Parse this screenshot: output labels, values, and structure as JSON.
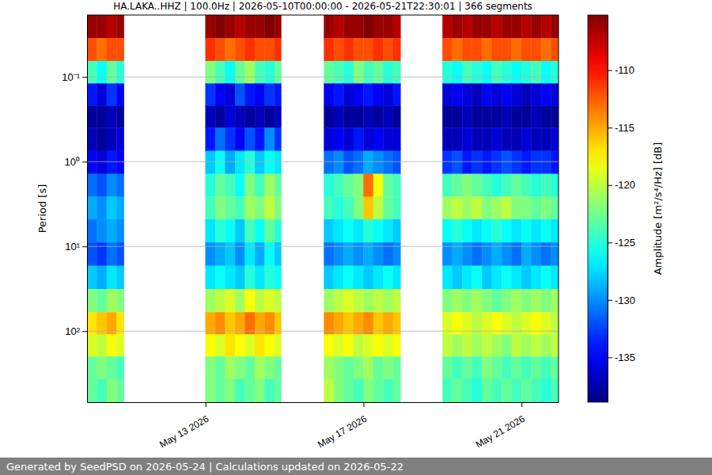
{
  "chart_data": {
    "type": "heatmap",
    "title": "HA.LAKA..HHZ | 100.0Hz | 2026-05-10T00:00:00 - 2026-05-21T22:30:01 | 366 segments",
    "y_label": "Period [s]",
    "colorbar_label": "Amplitude [m²/s⁴/Hz] [dB]",
    "footer": "Generated by SeedPSD on 2026-05-24 | Calculations updated on 2026-05-22",
    "log": "y",
    "grid": true,
    "xlim": [
      "2026-05-10T00:00:00",
      "2026-05-21T22:30:01"
    ],
    "xticks": [
      {
        "value": "2026-05-13T00:00:00",
        "label": "May 13 2026"
      },
      {
        "value": "2026-05-17T00:00:00",
        "label": "May 17 2026"
      },
      {
        "value": "2026-05-21T00:00:00",
        "label": "May 21 2026"
      }
    ],
    "ylim": [
      0.0186,
      690
    ],
    "yticks": [
      {
        "value": 0.1,
        "label": "10⁻¹"
      },
      {
        "value": 1,
        "label": "10⁰"
      },
      {
        "value": 10,
        "label": "10¹"
      },
      {
        "value": 100,
        "label": "10²"
      }
    ],
    "clim": [
      -138.9,
      -105.2
    ],
    "cticks": [
      -110,
      -115,
      -120,
      -125,
      -130,
      -135
    ],
    "x": [
      "2026-05-10T00:00:00",
      "2026-05-10T06:00:00",
      "2026-05-10T12:00:00",
      "2026-05-10T18:00:00",
      "2026-05-13T00:00:00",
      "2026-05-13T06:00:00",
      "2026-05-13T12:00:00",
      "2026-05-13T18:00:00",
      "2026-05-14T00:00:00",
      "2026-05-14T06:00:00",
      "2026-05-14T12:00:00",
      "2026-05-14T18:00:00",
      "2026-05-16T00:00:00",
      "2026-05-16T06:00:00",
      "2026-05-16T12:00:00",
      "2026-05-16T18:00:00",
      "2026-05-17T00:00:00",
      "2026-05-17T06:00:00",
      "2026-05-17T12:00:00",
      "2026-05-17T18:00:00",
      "2026-05-19T00:00:00",
      "2026-05-19T06:00:00",
      "2026-05-19T12:00:00",
      "2026-05-19T18:00:00",
      "2026-05-20T00:00:00",
      "2026-05-20T06:00:00",
      "2026-05-20T12:00:00",
      "2026-05-20T18:00:00",
      "2026-05-21T00:00:00",
      "2026-05-21T06:00:00",
      "2026-05-21T12:00:00",
      "2026-05-21T18:00:00"
    ],
    "x_end": [
      "2026-05-10T06:00:00",
      "2026-05-10T12:00:00",
      "2026-05-10T18:00:00",
      "2026-05-10T22:30:00",
      "2026-05-13T06:00:00",
      "2026-05-13T12:00:00",
      "2026-05-13T18:00:00",
      "2026-05-14T00:00:00",
      "2026-05-14T06:00:00",
      "2026-05-14T12:00:00",
      "2026-05-14T18:00:00",
      "2026-05-14T22:00:00",
      "2026-05-16T06:00:00",
      "2026-05-16T12:00:00",
      "2026-05-16T18:00:00",
      "2026-05-17T00:00:00",
      "2026-05-17T06:00:00",
      "2026-05-17T12:00:00",
      "2026-05-17T18:00:00",
      "2026-05-17T22:30:00",
      "2026-05-19T06:00:00",
      "2026-05-19T12:00:00",
      "2026-05-19T18:00:00",
      "2026-05-20T00:00:00",
      "2026-05-20T06:00:00",
      "2026-05-20T12:00:00",
      "2026-05-20T18:00:00",
      "2026-05-21T00:00:00",
      "2026-05-21T06:00:00",
      "2026-05-21T12:00:00",
      "2026-05-21T18:00:00",
      "2026-05-21T22:30:01"
    ],
    "y_bins": [
      0.0186,
      0.035,
      0.065,
      0.12,
      0.22,
      0.4,
      0.75,
      1.4,
      2.6,
      4.8,
      9,
      17,
      32,
      60,
      110,
      200,
      370,
      690
    ],
    "z": [
      [
        -106,
        -106,
        -107,
        -106,
        -106,
        -105,
        -106,
        -107,
        -106,
        -106,
        -105,
        -106,
        -106,
        -107,
        -106,
        -106,
        -105,
        -106,
        -106,
        -107,
        -107,
        -106,
        -107,
        -106,
        -106,
        -107,
        -106,
        -106,
        -107,
        -106,
        -107,
        -106
      ],
      [
        -112,
        -113,
        -112,
        -112,
        -111,
        -112,
        -113,
        -112,
        -111,
        -112,
        -112,
        -111,
        -111,
        -112,
        -111,
        -112,
        -112,
        -111,
        -112,
        -111,
        -112,
        -113,
        -112,
        -112,
        -113,
        -112,
        -112,
        -113,
        -112,
        -112,
        -113,
        -112
      ],
      [
        -124,
        -126,
        -123,
        -125,
        -122,
        -124,
        -126,
        -123,
        -121,
        -124,
        -125,
        -123,
        -123,
        -124,
        -125,
        -122,
        -124,
        -123,
        -125,
        -124,
        -125,
        -126,
        -124,
        -125,
        -126,
        -124,
        -125,
        -126,
        -125,
        -124,
        -126,
        -125
      ],
      [
        -134,
        -136,
        -133,
        -135,
        -133,
        -135,
        -136,
        -132,
        -134,
        -135,
        -133,
        -134,
        -135,
        -134,
        -136,
        -135,
        -134,
        -135,
        -136,
        -134,
        -136,
        -135,
        -136,
        -137,
        -135,
        -136,
        -135,
        -136,
        -137,
        -136,
        -135,
        -136
      ],
      [
        -138,
        -138,
        -137,
        -138,
        -137,
        -138,
        -136,
        -137,
        -138,
        -137,
        -138,
        -137,
        -138,
        -137,
        -138,
        -138,
        -137,
        -138,
        -137,
        -138,
        -138,
        -138,
        -137,
        -138,
        -138,
        -138,
        -137,
        -138,
        -138,
        -137,
        -138,
        -138
      ],
      [
        -137,
        -138,
        -137,
        -136,
        -134,
        -131,
        -133,
        -135,
        -132,
        -134,
        -130,
        -133,
        -136,
        -135,
        -136,
        -134,
        -136,
        -135,
        -136,
        -136,
        -137,
        -137,
        -136,
        -137,
        -137,
        -136,
        -137,
        -137,
        -136,
        -137,
        -137,
        -136
      ],
      [
        -135,
        -136,
        -134,
        -135,
        -128,
        -126,
        -129,
        -127,
        -125,
        -128,
        -126,
        -127,
        -131,
        -130,
        -132,
        -131,
        -129,
        -130,
        -131,
        -132,
        -133,
        -132,
        -134,
        -133,
        -134,
        -133,
        -132,
        -133,
        -134,
        -133,
        -133,
        -134
      ],
      [
        -131,
        -132,
        -130,
        -131,
        -125,
        -123,
        -124,
        -126,
        -122,
        -124,
        -121,
        -123,
        -125,
        -124,
        -123,
        -122,
        -113,
        -118,
        -123,
        -124,
        -124,
        -123,
        -122,
        -123,
        -124,
        -125,
        -124,
        -123,
        -124,
        -125,
        -124,
        -125
      ],
      [
        -129,
        -130,
        -128,
        -129,
        -124,
        -122,
        -123,
        -124,
        -121,
        -122,
        -120,
        -122,
        -124,
        -125,
        -124,
        -122,
        -116,
        -120,
        -123,
        -124,
        -121,
        -120,
        -121,
        -120,
        -122,
        -121,
        -120,
        -122,
        -122,
        -123,
        -122,
        -123
      ],
      [
        -131,
        -130,
        -129,
        -130,
        -127,
        -125,
        -126,
        -128,
        -124,
        -126,
        -123,
        -125,
        -128,
        -127,
        -126,
        -127,
        -125,
        -126,
        -127,
        -128,
        -126,
        -125,
        -126,
        -127,
        -126,
        -125,
        -126,
        -127,
        -126,
        -127,
        -126,
        -127
      ],
      [
        -132,
        -133,
        -131,
        -132,
        -130,
        -129,
        -128,
        -130,
        -127,
        -129,
        -126,
        -128,
        -131,
        -130,
        -129,
        -130,
        -129,
        -130,
        -131,
        -130,
        -130,
        -129,
        -130,
        -131,
        -130,
        -129,
        -130,
        -131,
        -129,
        -130,
        -131,
        -130
      ],
      [
        -128,
        -129,
        -127,
        -128,
        -127,
        -126,
        -127,
        -128,
        -125,
        -127,
        -125,
        -126,
        -128,
        -127,
        -126,
        -127,
        -128,
        -127,
        -126,
        -127,
        -127,
        -128,
        -127,
        -126,
        -128,
        -127,
        -126,
        -127,
        -128,
        -127,
        -126,
        -127
      ],
      [
        -122,
        -123,
        -121,
        -122,
        -121,
        -120,
        -119,
        -121,
        -118,
        -120,
        -119,
        -120,
        -121,
        -120,
        -119,
        -120,
        -121,
        -120,
        -121,
        -120,
        -122,
        -121,
        -122,
        -121,
        -122,
        -123,
        -122,
        -121,
        -122,
        -121,
        -122,
        -121
      ],
      [
        -117,
        -116,
        -115,
        -117,
        -115,
        -114,
        -116,
        -115,
        -113,
        -115,
        -114,
        -116,
        -114,
        -115,
        -116,
        -115,
        -114,
        -116,
        -115,
        -116,
        -119,
        -118,
        -119,
        -120,
        -119,
        -118,
        -119,
        -120,
        -119,
        -118,
        -119,
        -120
      ],
      [
        -119,
        -120,
        -118,
        -119,
        -118,
        -119,
        -117,
        -118,
        -119,
        -117,
        -118,
        -119,
        -118,
        -119,
        -118,
        -120,
        -119,
        -118,
        -119,
        -118,
        -120,
        -121,
        -120,
        -121,
        -120,
        -121,
        -122,
        -120,
        -121,
        -120,
        -121,
        -120
      ],
      [
        -123,
        -122,
        -123,
        -124,
        -122,
        -123,
        -121,
        -122,
        -123,
        -121,
        -122,
        -123,
        -121,
        -122,
        -123,
        -122,
        -121,
        -123,
        -122,
        -123,
        -123,
        -124,
        -123,
        -124,
        -122,
        -123,
        -124,
        -123,
        -124,
        -123,
        -124,
        -123
      ],
      [
        -123,
        -124,
        -122,
        -123,
        -122,
        -123,
        -122,
        -124,
        -123,
        -122,
        -124,
        -123,
        -120,
        -122,
        -123,
        -124,
        -122,
        -123,
        -124,
        -123,
        -124,
        -123,
        -124,
        -125,
        -123,
        -124,
        -123,
        -124,
        -123,
        -124,
        -125,
        -124
      ]
    ]
  }
}
